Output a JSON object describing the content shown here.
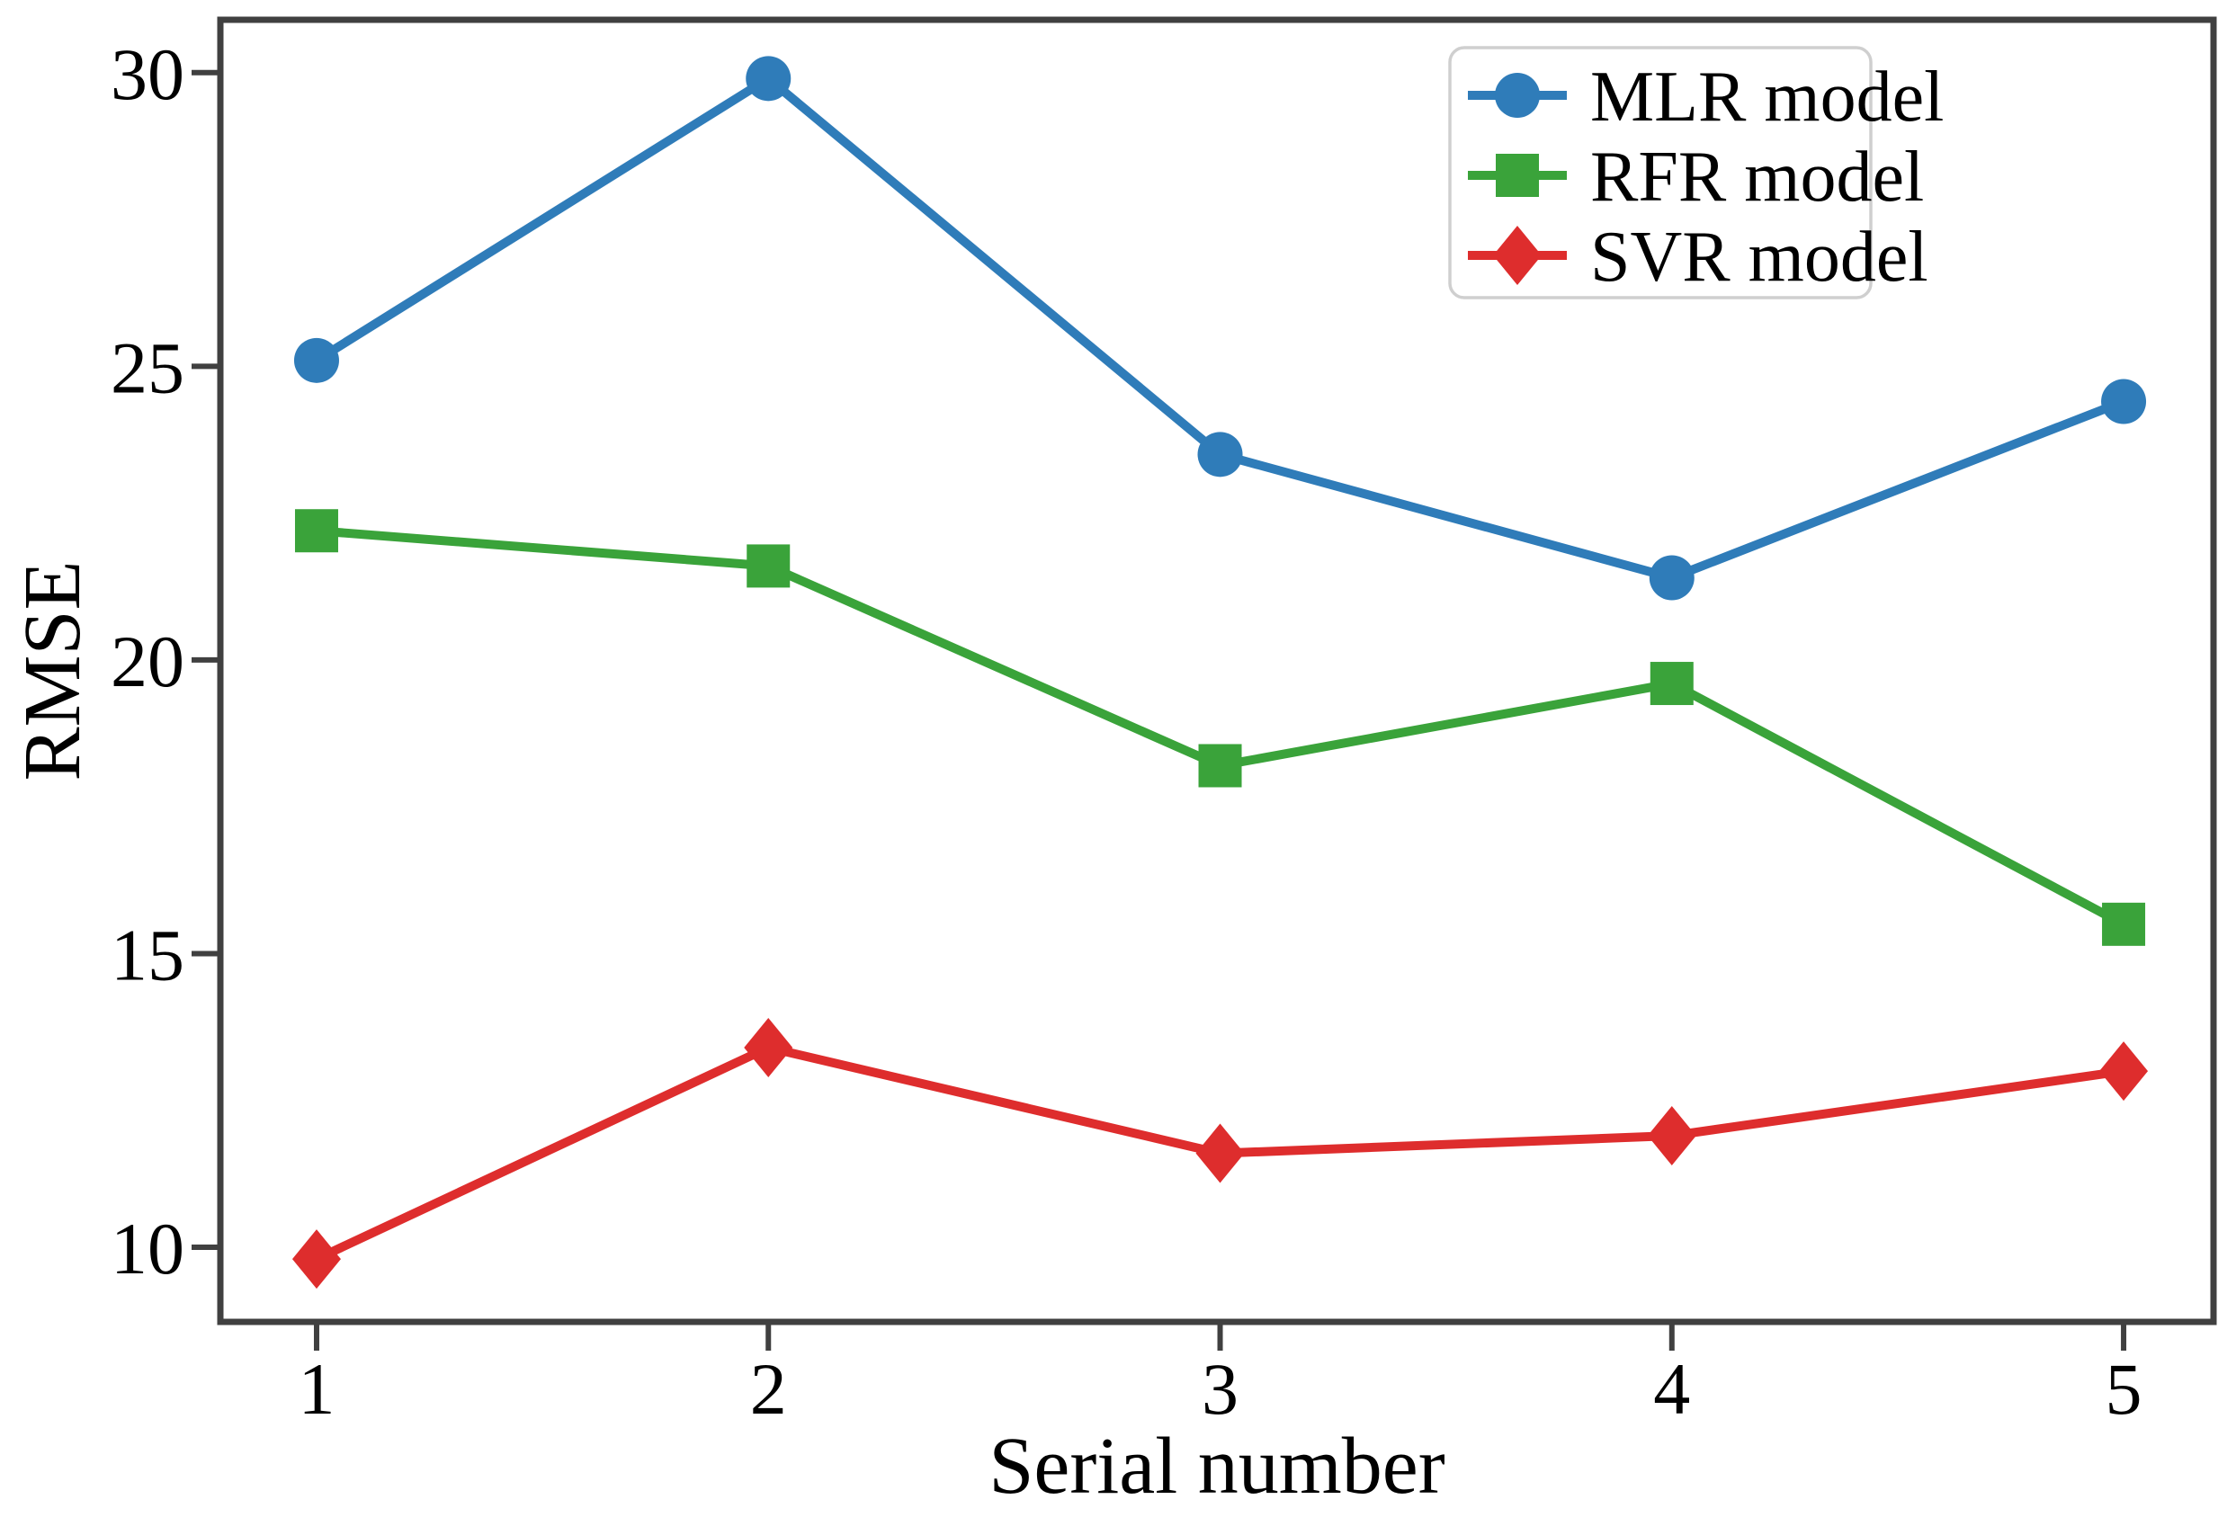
{
  "figure": {
    "background": "#ffffff",
    "axis_color": "#404040",
    "tick_label_color": "#000000",
    "legend_border_color": "#cfcfcf"
  },
  "chart_data": {
    "type": "line",
    "title": "",
    "xlabel": "Serial number",
    "ylabel": "RMSE",
    "x": [
      1,
      2,
      3,
      4,
      5
    ],
    "xticks": [
      "1",
      "2",
      "3",
      "4",
      "5"
    ],
    "yticks": [
      "10",
      "15",
      "20",
      "25",
      "30"
    ],
    "ytick_values": [
      10,
      15,
      20,
      25,
      30
    ],
    "xlim": [
      0.787,
      5.199
    ],
    "ylim": [
      8.73,
      30.9
    ],
    "grid": false,
    "legend_position": "top-right",
    "series": [
      {
        "name": "MLR model",
        "color": "#2f7cb9",
        "marker": "circle",
        "values": [
          25.1,
          29.9,
          23.5,
          21.4,
          24.4
        ]
      },
      {
        "name": "RFR model",
        "color": "#3aa33a",
        "marker": "square",
        "values": [
          22.2,
          21.6,
          18.2,
          19.6,
          15.5
        ]
      },
      {
        "name": "SVR model",
        "color": "#de2d2d",
        "marker": "diamond",
        "values": [
          9.8,
          13.4,
          11.6,
          11.9,
          13.0
        ]
      }
    ]
  }
}
